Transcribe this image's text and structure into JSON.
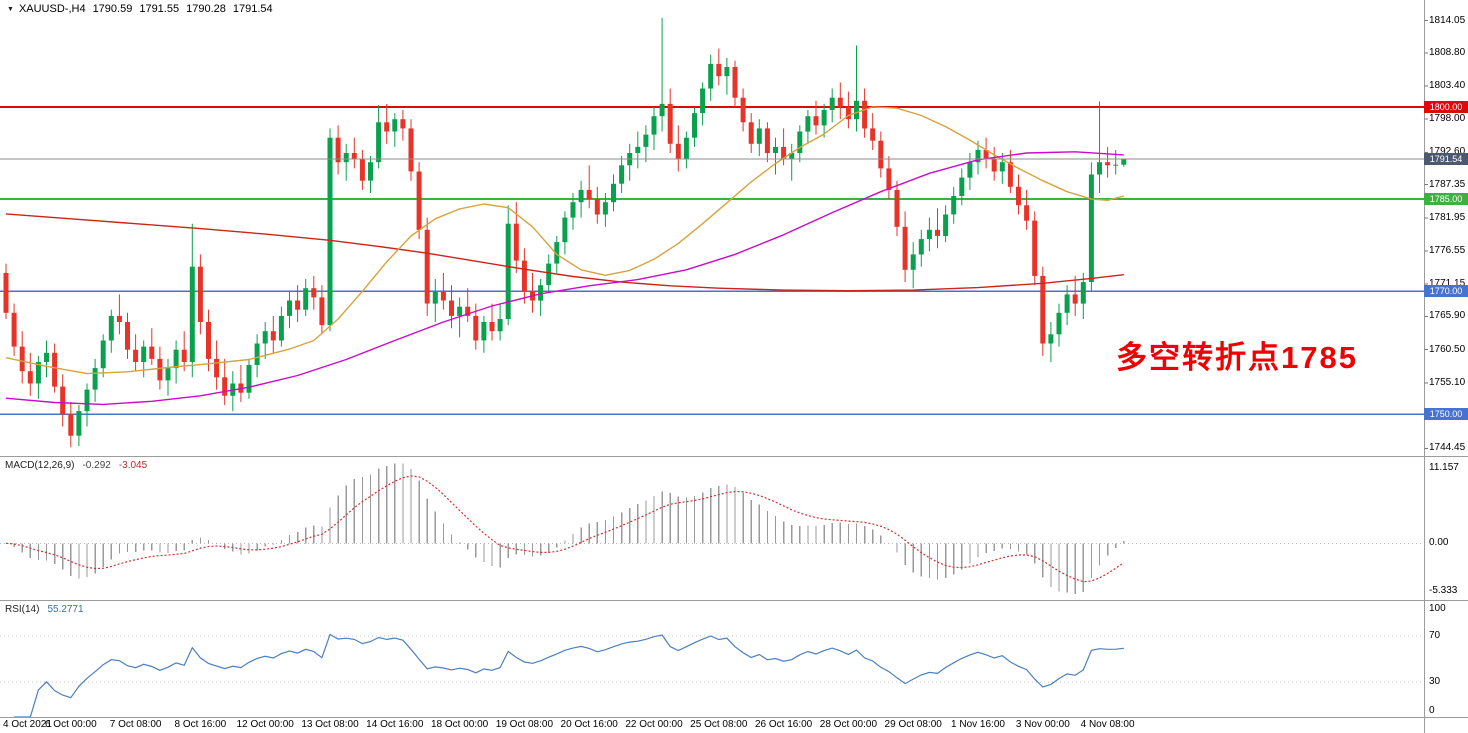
{
  "header": {
    "marker_icon": "▼",
    "symbol_period": "XAUUSD-,H4",
    "open": "1790.59",
    "high": "1791.55",
    "low": "1790.28",
    "close": "1791.54"
  },
  "main_chart": {
    "annotation": {
      "text": "多空转折点1785",
      "color": "#f00000"
    },
    "levels": [
      {
        "label": "1800.00",
        "value": 1800.0,
        "color": "#dd0a0a"
      },
      {
        "label": "1785.00",
        "value": 1785.0,
        "color": "#3cb043"
      },
      {
        "label": "1770.00",
        "value": 1770.0,
        "color": "#4673d1"
      },
      {
        "label": "1750.00",
        "value": 1750.0,
        "color": "#4673d1"
      }
    ],
    "current_price": {
      "label": "1791.54",
      "value": 1791.54,
      "line_color": "#8c8c8c",
      "badge_color": "#4d5970"
    }
  },
  "macd_panel": {
    "name": "MACD(12,26,9)",
    "value": "-0.292",
    "signal": "-3.045",
    "axis_labels": [
      "11.157",
      "0.00",
      "-5.333"
    ],
    "histogram_color": "#9a9a9a",
    "signal_color": "#cf3030"
  },
  "rsi_panel": {
    "name": "RSI(14)",
    "value": "55.2771",
    "axis_labels": [
      "100",
      "70",
      "30",
      "0"
    ],
    "levels": [
      70,
      30
    ],
    "line_color": "#4a7fc1"
  },
  "chart_data": {
    "type": "candlestick",
    "symbol": "XAUUSD-",
    "timeframe": "H4",
    "price_range": {
      "top": 1817.4,
      "bottom": 1743.2
    },
    "colors": {
      "up": "#0aa14e",
      "down": "#e73328"
    },
    "y_axis_ticks": [
      "1814.05",
      "1808.80",
      "1803.40",
      "1798.00",
      "1792.60",
      "1787.35",
      "1781.95",
      "1776.55",
      "1771.15",
      "1765.90",
      "1760.50",
      "1755.10",
      "1749.70",
      "1744.45"
    ],
    "x_labels": [
      "4 Oct 2021",
      "6 Oct 00:00",
      "7 Oct 08:00",
      "8 Oct 16:00",
      "12 Oct 00:00",
      "13 Oct 08:00",
      "14 Oct 16:00",
      "18 Oct 00:00",
      "19 Oct 08:00",
      "20 Oct 16:00",
      "22 Oct 00:00",
      "25 Oct 08:00",
      "26 Oct 16:00",
      "28 Oct 00:00",
      "29 Oct 08:00",
      "1 Nov 16:00",
      "3 Nov 00:00",
      "4 Nov 08:00"
    ],
    "x_label_step": 8,
    "macd": {
      "fast": 12,
      "slow": 26,
      "signal": 9
    },
    "rsi": {
      "period": 14
    },
    "candles": [
      [
        1773,
        1774.5,
        1765.5,
        1766.5
      ],
      [
        1766.5,
        1768,
        1759.5,
        1761
      ],
      [
        1761,
        1763.5,
        1755,
        1757
      ],
      [
        1757,
        1760,
        1753,
        1755
      ],
      [
        1755,
        1759.5,
        1752.5,
        1758.5
      ],
      [
        1758.5,
        1762,
        1756,
        1760
      ],
      [
        1760,
        1761.5,
        1753.5,
        1754.5
      ],
      [
        1754.5,
        1756.5,
        1748,
        1750
      ],
      [
        1750,
        1752,
        1744.6,
        1746.5
      ],
      [
        1746.5,
        1751.5,
        1744.8,
        1750.5
      ],
      [
        1750.5,
        1755,
        1748,
        1754
      ],
      [
        1754,
        1759,
        1752,
        1757.5
      ],
      [
        1757.5,
        1763,
        1756,
        1762
      ],
      [
        1762,
        1767,
        1760,
        1766
      ],
      [
        1766,
        1769.5,
        1763,
        1765
      ],
      [
        1765,
        1766.5,
        1759,
        1760.5
      ],
      [
        1760.5,
        1763,
        1757,
        1758.5
      ],
      [
        1758.5,
        1762,
        1756,
        1761
      ],
      [
        1761,
        1764,
        1758,
        1759
      ],
      [
        1759,
        1761,
        1754,
        1755.5
      ],
      [
        1755.5,
        1759,
        1753,
        1757.5
      ],
      [
        1757.5,
        1762,
        1755,
        1760.5
      ],
      [
        1760.5,
        1763.5,
        1757,
        1758.5
      ],
      [
        1758.5,
        1781,
        1756,
        1774
      ],
      [
        1774,
        1776,
        1763,
        1765
      ],
      [
        1765,
        1767,
        1757,
        1759
      ],
      [
        1759,
        1762,
        1754,
        1756
      ],
      [
        1756,
        1759,
        1751.5,
        1753
      ],
      [
        1753,
        1757,
        1750.5,
        1755
      ],
      [
        1755,
        1758,
        1752,
        1753.5
      ],
      [
        1753.5,
        1759,
        1752.5,
        1758
      ],
      [
        1758,
        1763,
        1756,
        1761.5
      ],
      [
        1761.5,
        1765,
        1759,
        1763.5
      ],
      [
        1763.5,
        1766,
        1760,
        1762
      ],
      [
        1762,
        1767.5,
        1761,
        1766
      ],
      [
        1766,
        1770,
        1764,
        1768.5
      ],
      [
        1768.5,
        1771,
        1765,
        1767
      ],
      [
        1767,
        1772,
        1766,
        1770.5
      ],
      [
        1770.5,
        1772.5,
        1767,
        1769
      ],
      [
        1769,
        1771,
        1763,
        1764.5
      ],
      [
        1764.5,
        1796.5,
        1763.5,
        1795
      ],
      [
        1795,
        1797,
        1789,
        1791
      ],
      [
        1791,
        1794,
        1788,
        1792.5
      ],
      [
        1792.5,
        1795,
        1790,
        1791.5
      ],
      [
        1791.5,
        1793,
        1786.5,
        1788
      ],
      [
        1788,
        1792,
        1786,
        1791
      ],
      [
        1791,
        1800.3,
        1790,
        1797.5
      ],
      [
        1797.5,
        1800.5,
        1794,
        1796
      ],
      [
        1796,
        1799,
        1793.5,
        1798
      ],
      [
        1798,
        1799.5,
        1794.5,
        1796.5
      ],
      [
        1796.5,
        1798,
        1788,
        1789.5
      ],
      [
        1789.5,
        1791,
        1778.5,
        1780
      ],
      [
        1780,
        1782,
        1766,
        1768
      ],
      [
        1768,
        1772,
        1765,
        1770
      ],
      [
        1770,
        1773,
        1767,
        1768.5
      ],
      [
        1768.5,
        1771,
        1764,
        1766
      ],
      [
        1766,
        1769,
        1762.5,
        1767.5
      ],
      [
        1767.5,
        1770.5,
        1765,
        1766
      ],
      [
        1766,
        1768,
        1760.5,
        1762
      ],
      [
        1762,
        1766,
        1760,
        1765
      ],
      [
        1765,
        1768,
        1762,
        1763.5
      ],
      [
        1763.5,
        1768,
        1762,
        1765.5
      ],
      [
        1765.5,
        1784,
        1764.5,
        1781
      ],
      [
        1781,
        1784.5,
        1773,
        1775
      ],
      [
        1775,
        1777,
        1768,
        1770
      ],
      [
        1770,
        1773,
        1766.5,
        1768.5
      ],
      [
        1768.5,
        1772,
        1766,
        1771
      ],
      [
        1771,
        1776,
        1770,
        1774.5
      ],
      [
        1774.5,
        1779,
        1773,
        1778
      ],
      [
        1778,
        1783,
        1776,
        1782
      ],
      [
        1782,
        1786,
        1780,
        1784.5
      ],
      [
        1784.5,
        1788,
        1782,
        1786.5
      ],
      [
        1786.5,
        1790.5,
        1783.5,
        1785
      ],
      [
        1785,
        1787,
        1781,
        1782.5
      ],
      [
        1782.5,
        1786,
        1780.5,
        1784.5
      ],
      [
        1784.5,
        1789,
        1783,
        1787.5
      ],
      [
        1787.5,
        1792,
        1786,
        1790.5
      ],
      [
        1790.5,
        1794,
        1788,
        1792.5
      ],
      [
        1792.5,
        1796,
        1790,
        1793.5
      ],
      [
        1793.5,
        1797,
        1791,
        1795.5
      ],
      [
        1795.5,
        1800,
        1793,
        1798.5
      ],
      [
        1798.5,
        1814.5,
        1796,
        1800.5
      ],
      [
        1800.5,
        1803,
        1792.5,
        1794
      ],
      [
        1794,
        1797,
        1789.5,
        1791.5
      ],
      [
        1791.5,
        1796,
        1790,
        1795
      ],
      [
        1795,
        1800,
        1793.5,
        1799
      ],
      [
        1799,
        1804,
        1797,
        1803
      ],
      [
        1803,
        1808.5,
        1801,
        1807
      ],
      [
        1807,
        1809.5,
        1803.5,
        1805
      ],
      [
        1805,
        1808,
        1802,
        1806.5
      ],
      [
        1806.5,
        1807.5,
        1800,
        1801.5
      ],
      [
        1801.5,
        1803,
        1796,
        1797.5
      ],
      [
        1797.5,
        1799,
        1792.5,
        1794
      ],
      [
        1794,
        1798,
        1792,
        1796.5
      ],
      [
        1796.5,
        1797.5,
        1791,
        1792.5
      ],
      [
        1792.5,
        1795,
        1789,
        1793.5
      ],
      [
        1793.5,
        1796.5,
        1790.5,
        1791.5
      ],
      [
        1791.5,
        1794,
        1788,
        1792.5
      ],
      [
        1792.5,
        1797,
        1791,
        1796
      ],
      [
        1796,
        1799.5,
        1794,
        1798.5
      ],
      [
        1798.5,
        1801,
        1795.5,
        1797
      ],
      [
        1797,
        1800.5,
        1795,
        1799.5
      ],
      [
        1799.5,
        1803,
        1797.5,
        1801.5
      ],
      [
        1801.5,
        1804,
        1798,
        1800
      ],
      [
        1800,
        1802.5,
        1796.5,
        1798
      ],
      [
        1798,
        1810,
        1796,
        1801
      ],
      [
        1801,
        1803,
        1795,
        1796.5
      ],
      [
        1796.5,
        1799,
        1793,
        1794.5
      ],
      [
        1794.5,
        1796,
        1788.5,
        1790
      ],
      [
        1790,
        1792,
        1785,
        1786.5
      ],
      [
        1786.5,
        1788,
        1779,
        1780.5
      ],
      [
        1780.5,
        1783,
        1771.5,
        1773.5
      ],
      [
        1773.5,
        1778,
        1770.5,
        1776
      ],
      [
        1776,
        1780,
        1774,
        1778.5
      ],
      [
        1778.5,
        1782,
        1776.5,
        1780
      ],
      [
        1780,
        1783.5,
        1777,
        1779
      ],
      [
        1779,
        1784,
        1778,
        1782.5
      ],
      [
        1782.5,
        1787,
        1781,
        1785.5
      ],
      [
        1785.5,
        1790,
        1784,
        1788.5
      ],
      [
        1788.5,
        1792.5,
        1786.5,
        1791
      ],
      [
        1791,
        1794.5,
        1789,
        1793
      ],
      [
        1793,
        1795,
        1790,
        1791.5
      ],
      [
        1791.5,
        1793.5,
        1788,
        1789.5
      ],
      [
        1789.5,
        1792.5,
        1787.5,
        1791
      ],
      [
        1791,
        1793,
        1786,
        1787
      ],
      [
        1787,
        1789,
        1782.5,
        1784
      ],
      [
        1784,
        1786.5,
        1780,
        1781.5
      ],
      [
        1781.5,
        1783,
        1771,
        1772.5
      ],
      [
        1772.5,
        1774,
        1759.5,
        1761.5
      ],
      [
        1761.5,
        1765,
        1758.5,
        1763
      ],
      [
        1763,
        1768,
        1761,
        1766.5
      ],
      [
        1766.5,
        1771,
        1764.5,
        1769.5
      ],
      [
        1769.5,
        1772.5,
        1766,
        1768
      ],
      [
        1768,
        1773,
        1765.5,
        1771.5
      ],
      [
        1771.5,
        1791,
        1770,
        1789
      ],
      [
        1789,
        1800.9,
        1786,
        1791
      ],
      [
        1791,
        1793.5,
        1788.5,
        1790.5
      ],
      [
        1790.5,
        1793,
        1789,
        1790.6
      ],
      [
        1790.59,
        1791.55,
        1790.28,
        1791.54
      ]
    ],
    "overlays": [
      {
        "name": "ma-long-red",
        "color": "#cc2418",
        "points": [
          [
            0,
            1782.6
          ],
          [
            8,
            1781.8
          ],
          [
            16,
            1781
          ],
          [
            24,
            1780.2
          ],
          [
            32,
            1779.3
          ],
          [
            40,
            1778.3
          ],
          [
            46,
            1777.3
          ],
          [
            52,
            1776.2
          ],
          [
            58,
            1774.9
          ],
          [
            64,
            1773.6
          ],
          [
            70,
            1772.4
          ],
          [
            76,
            1771.5
          ],
          [
            82,
            1770.9
          ],
          [
            88,
            1770.5
          ],
          [
            96,
            1770.2
          ],
          [
            104,
            1770.1
          ],
          [
            112,
            1770.2
          ],
          [
            120,
            1770.6
          ],
          [
            128,
            1771.3
          ],
          [
            134,
            1772.1
          ],
          [
            138,
            1772.7
          ]
        ]
      },
      {
        "name": "ma-mid-orange",
        "color": "#d9a23c",
        "points": [
          [
            0,
            1759.2
          ],
          [
            5,
            1757.8
          ],
          [
            10,
            1756.6
          ],
          [
            15,
            1756.9
          ],
          [
            20,
            1757.6
          ],
          [
            25,
            1758.2
          ],
          [
            30,
            1758.9
          ],
          [
            35,
            1760.6
          ],
          [
            38,
            1762
          ],
          [
            41,
            1765.5
          ],
          [
            44,
            1770
          ],
          [
            47,
            1774.8
          ],
          [
            50,
            1779
          ],
          [
            53,
            1781.8
          ],
          [
            56,
            1783.4
          ],
          [
            59,
            1784.2
          ],
          [
            62,
            1783.6
          ],
          [
            65,
            1780.5
          ],
          [
            68,
            1776
          ],
          [
            71,
            1773.5
          ],
          [
            74,
            1772.6
          ],
          [
            77,
            1773.4
          ],
          [
            80,
            1775.2
          ],
          [
            83,
            1777.8
          ],
          [
            86,
            1781
          ],
          [
            89,
            1784.4
          ],
          [
            92,
            1787.8
          ],
          [
            95,
            1790.8
          ],
          [
            98,
            1793.4
          ],
          [
            101,
            1795.6
          ],
          [
            104,
            1798.6
          ],
          [
            107,
            1800
          ],
          [
            110,
            1799.8
          ],
          [
            113,
            1798.6
          ],
          [
            116,
            1796.8
          ],
          [
            119,
            1794.6
          ],
          [
            122,
            1792.2
          ],
          [
            125,
            1790
          ],
          [
            128,
            1788
          ],
          [
            131,
            1786.2
          ],
          [
            134,
            1785
          ],
          [
            136,
            1784.8
          ],
          [
            138,
            1785.5
          ]
        ]
      },
      {
        "name": "ma-slow-magenta",
        "color": "#cb0acb",
        "points": [
          [
            0,
            1752.6
          ],
          [
            6,
            1751.9
          ],
          [
            12,
            1751.6
          ],
          [
            18,
            1752.1
          ],
          [
            24,
            1753
          ],
          [
            30,
            1754.4
          ],
          [
            36,
            1756.3
          ],
          [
            42,
            1758.9
          ],
          [
            48,
            1762
          ],
          [
            54,
            1765
          ],
          [
            60,
            1767.6
          ],
          [
            66,
            1769.6
          ],
          [
            72,
            1770.9
          ],
          [
            78,
            1771.9
          ],
          [
            84,
            1773.5
          ],
          [
            90,
            1776
          ],
          [
            96,
            1779.2
          ],
          [
            102,
            1782.8
          ],
          [
            108,
            1786.2
          ],
          [
            114,
            1789.2
          ],
          [
            120,
            1791.4
          ],
          [
            126,
            1792.5
          ],
          [
            132,
            1792.7
          ],
          [
            138,
            1792.2
          ]
        ]
      }
    ]
  }
}
